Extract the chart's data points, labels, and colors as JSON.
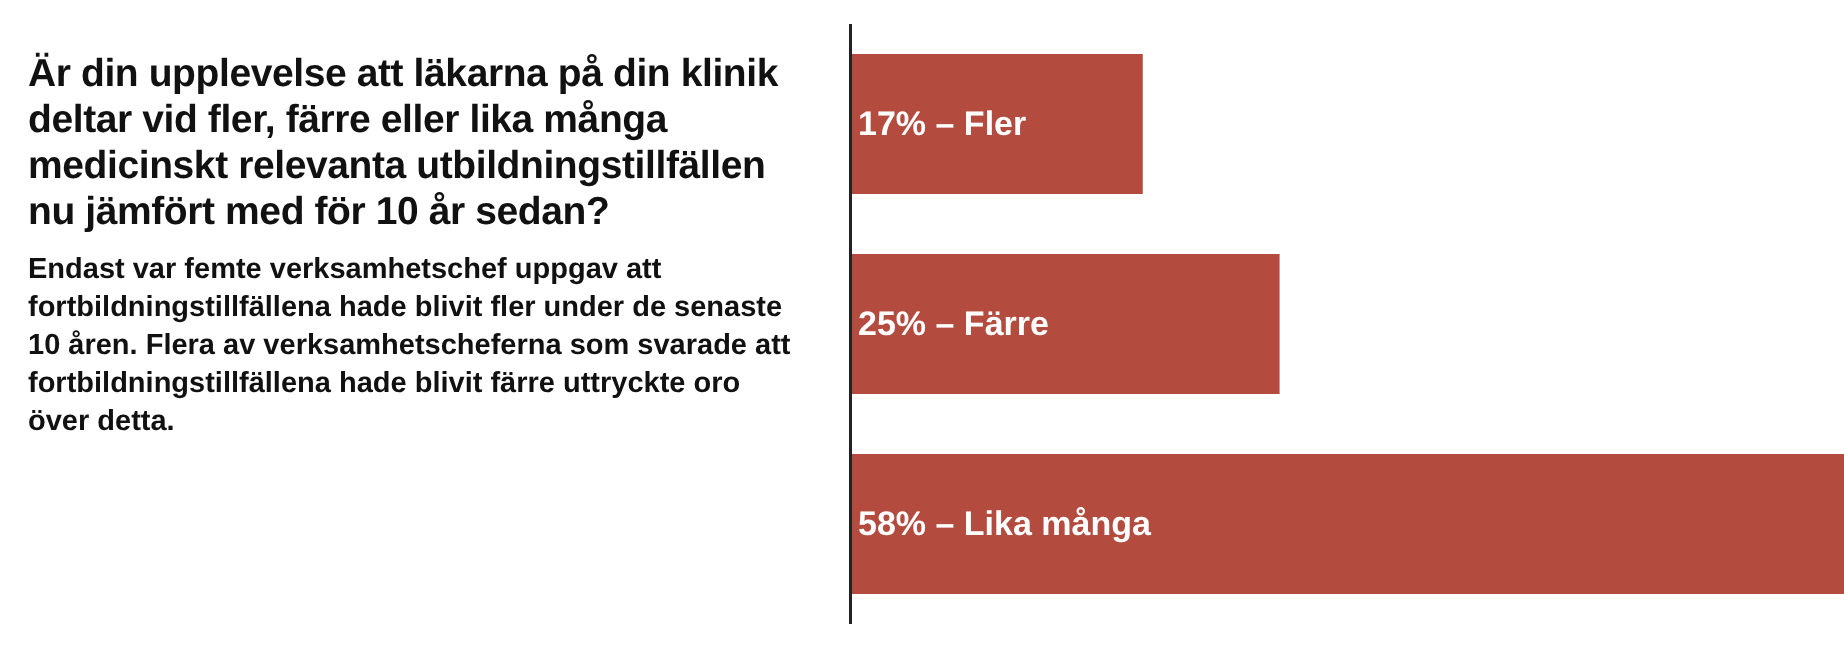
{
  "chart_data": {
    "type": "bar",
    "orientation": "horizontal",
    "title": "Är din upplevelse att läkarna på din klinik deltar vid fler, färre eller lika många medicinskt relevanta utbildningstillfällen nu jämfört med för 10 år sedan?",
    "subtitle": "Endast var femte verksamhetschef uppgav att fortbildningstillfällena hade blivit fler under de senaste 10 åren. Flera av verksamhetscheferna som svarade att fortbildningstillfällena hade blivit färre uttryckte oro över detta.",
    "categories": [
      null,
      null,
      null
    ],
    "values": [
      17,
      25,
      58
    ],
    "value_labels": [
      "17% – Fler",
      "25% – Färre",
      "58% – Lika många"
    ],
    "color": "#b34b3f",
    "xlim": [
      0,
      58
    ],
    "tick_labels": false
  }
}
